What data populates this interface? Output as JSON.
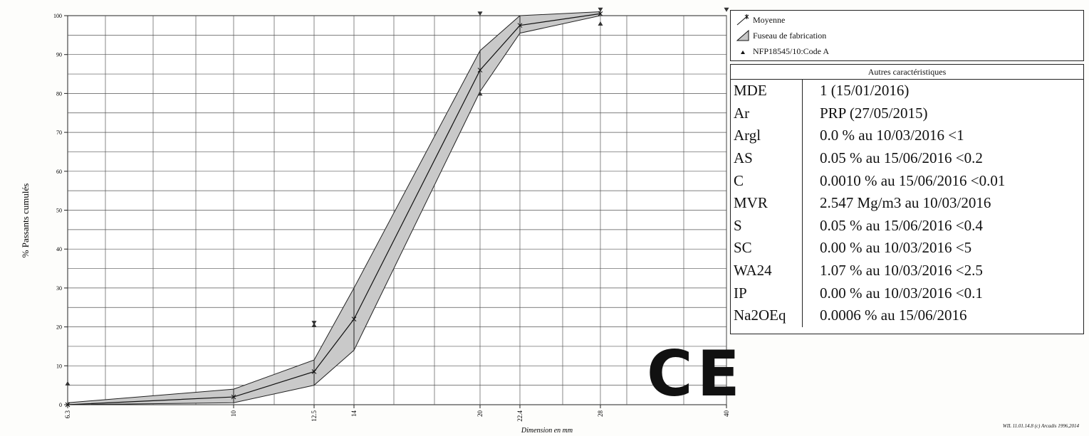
{
  "chart_data": {
    "type": "line",
    "xlabel": "Dimension en mm",
    "ylabel": "% Passants cumulés",
    "ylim": [
      0,
      100
    ],
    "y_ticks": [
      0,
      10,
      20,
      30,
      40,
      50,
      60,
      70,
      80,
      90,
      100
    ],
    "x_ticks": [
      6.3,
      10,
      12.5,
      14,
      20,
      22.4,
      28,
      40
    ],
    "x_tick_labels": [
      "6.3",
      "10",
      "12.5",
      "14",
      "20",
      "22.4",
      "28",
      "40"
    ],
    "grid": true,
    "series": [
      {
        "name": "Moyenne",
        "x": [
          6.3,
          10,
          12.5,
          14,
          20,
          22.4,
          28
        ],
        "y": [
          0,
          2,
          8.5,
          22,
          86,
          97.5,
          100.5
        ]
      },
      {
        "name": "Fuseau de fabrication",
        "x": [
          6.3,
          10,
          12.5,
          14,
          20,
          22.4,
          28
        ],
        "y_low": [
          0,
          0.5,
          5,
          14,
          80.5,
          95.5,
          100
        ],
        "y_high": [
          0.5,
          4,
          11.5,
          30,
          91,
          100,
          101
        ]
      },
      {
        "name": "NFP18545/10:Code A",
        "x": [
          6.3,
          12.5,
          20,
          28
        ],
        "y": [
          5.5,
          20.5,
          80,
          98
        ],
        "upper_x": [
          12.5,
          20,
          28,
          40
        ],
        "upper_y": [
          21,
          100.5,
          101.5,
          101.5
        ]
      }
    ]
  },
  "legend": {
    "moyenne": "Moyenne",
    "fuseau": "Fuseau de fabrication",
    "code": "NFP18545/10:Code A"
  },
  "table": {
    "title": "Autres caractéristiques",
    "rows": [
      {
        "key": "MDE",
        "value": "1  (15/01/2016)"
      },
      {
        "key": "Ar",
        "value": "PRP  (27/05/2015)"
      },
      {
        "key": "Argl",
        "value": "0.0 %  au 10/03/2016 <1"
      },
      {
        "key": "AS",
        "value": "0.05 %  au 15/06/2016 <0.2"
      },
      {
        "key": "C",
        "value": "0.0010 %  au 15/06/2016 <0.01"
      },
      {
        "key": "MVR",
        "value": "2.547 Mg/m3  au 10/03/2016"
      },
      {
        "key": "S",
        "value": "0.05 %  au 15/06/2016 <0.4"
      },
      {
        "key": "SC",
        "value": "0.00 %  au 10/03/2016 <5"
      },
      {
        "key": "WA24",
        "value": "1.07 %  au 10/03/2016 <2.5"
      },
      {
        "key": "IP",
        "value": "0.00 %  au 10/03/2016 <0.1"
      },
      {
        "key": "Na2OEq",
        "value": "0.0006 %  au 15/06/2016"
      }
    ]
  },
  "mark": "CE",
  "footer": "WIL 11.01.14.8 (c) Arcadis 1996,2014"
}
